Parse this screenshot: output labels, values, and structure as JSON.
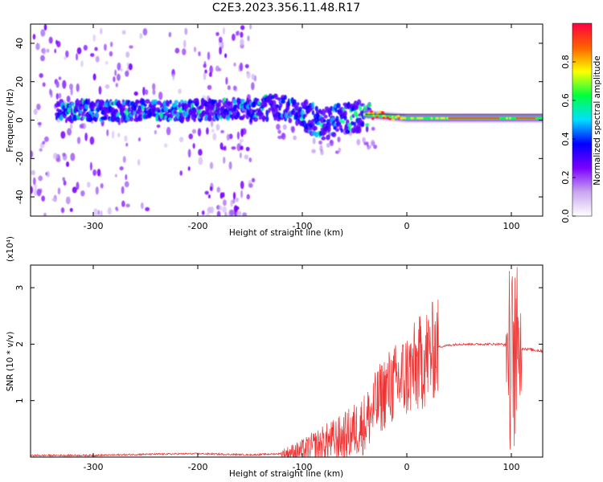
{
  "title": "C2E3.2023.356.11.48.R17",
  "chart_data": [
    {
      "type": "heatmap",
      "title": "C2E3.2023.356.11.48.R17",
      "xlabel": "Height of straight line (km)",
      "ylabel": "Frequency (Hz)",
      "xlim": [
        -360,
        130
      ],
      "ylim": [
        -50,
        50
      ],
      "x_ticks": [
        -300,
        -200,
        -100,
        0,
        100
      ],
      "y_ticks": [
        -40,
        -20,
        0,
        20,
        40
      ],
      "colorbar": {
        "label": "Normalized spectral amplitude",
        "range": [
          0.0,
          1.0
        ],
        "ticks": [
          0.0,
          0.2,
          0.4,
          0.6,
          0.8
        ],
        "colormap": [
          "#ffffff",
          "#c9a6ee",
          "#7a00ff",
          "#0000ff",
          "#00e0ff",
          "#00ff40",
          "#ffff00",
          "#ff6000",
          "#ff0040"
        ]
      },
      "ridge": [
        {
          "x": -330,
          "y": 5
        },
        {
          "x": -300,
          "y": 5
        },
        {
          "x": -250,
          "y": 5
        },
        {
          "x": -200,
          "y": 5
        },
        {
          "x": -150,
          "y": 6
        },
        {
          "x": -120,
          "y": 7
        },
        {
          "x": -100,
          "y": 3
        },
        {
          "x": -80,
          "y": -2
        },
        {
          "x": -60,
          "y": 1
        },
        {
          "x": -40,
          "y": 3
        },
        {
          "x": -20,
          "y": 2
        },
        {
          "x": 0,
          "y": 1
        },
        {
          "x": 50,
          "y": 1
        },
        {
          "x": 100,
          "y": 1
        },
        {
          "x": 130,
          "y": 1
        }
      ]
    },
    {
      "type": "line",
      "xlabel": "Height of straight line (km)",
      "ylabel": "SNR (10 * v/v)",
      "scale_label": "(x10⁴)",
      "xlim": [
        -360,
        130
      ],
      "ylim": [
        0,
        3.4
      ],
      "x_ticks": [
        -300,
        -200,
        -100,
        0,
        100
      ],
      "y_ticks": [
        1,
        2,
        3
      ],
      "color": "#ee3333",
      "series": [
        {
          "x": [
            -360,
            -300,
            -250,
            -200,
            -150,
            -120,
            -100,
            -80,
            -60,
            -40,
            -30,
            -20,
            -10,
            0,
            10,
            20,
            30,
            40,
            50,
            60,
            70,
            80,
            90,
            95,
            100,
            103,
            105,
            110,
            120,
            130
          ],
          "values": [
            0.03,
            0.03,
            0.05,
            0.06,
            0.04,
            0.06,
            0.12,
            0.25,
            0.35,
            0.6,
            0.9,
            1.2,
            1.3,
            1.45,
            1.6,
            1.8,
            1.95,
            1.98,
            2.0,
            2.0,
            2.0,
            2.0,
            2.0,
            1.98,
            1.8,
            0.3,
            1.95,
            1.93,
            1.9,
            1.88
          ]
        }
      ]
    }
  ]
}
